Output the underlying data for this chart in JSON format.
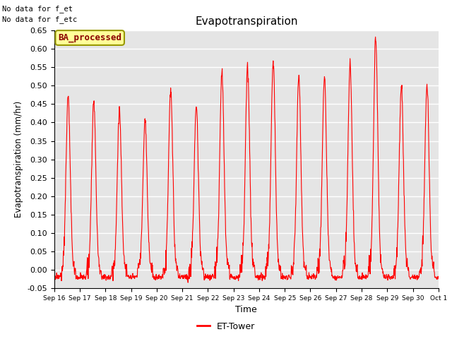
{
  "title": "Evapotranspiration",
  "ylabel": "Evapotranspiration (mm/hr)",
  "xlabel": "Time",
  "ylim": [
    -0.05,
    0.65
  ],
  "yticks": [
    -0.05,
    0.0,
    0.05,
    0.1,
    0.15,
    0.2,
    0.25,
    0.3,
    0.35,
    0.4,
    0.45,
    0.5,
    0.55,
    0.6,
    0.65
  ],
  "line_color": "red",
  "line_width": 0.8,
  "legend_label": "ET-Tower",
  "annotation1": "No data for f_et",
  "annotation2": "No data for f_etc",
  "box_label": "BA_processed",
  "plot_bg_color": "#e5e5e5",
  "grid_color": "white",
  "peaks": [
    0.47,
    0.46,
    0.43,
    0.41,
    0.49,
    0.45,
    0.54,
    0.55,
    0.57,
    0.53,
    0.53,
    0.56,
    0.63,
    0.5,
    0.5
  ],
  "num_days": 15,
  "pts_per_day": 96
}
